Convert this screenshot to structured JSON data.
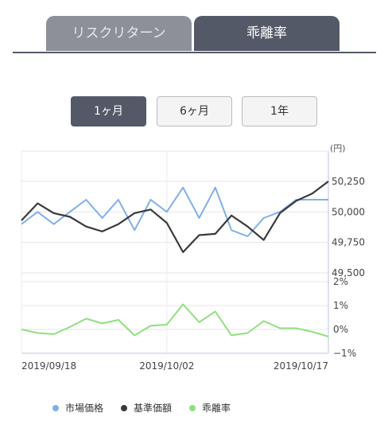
{
  "tabs": [
    {
      "label": "リスクリターン",
      "active": false
    },
    {
      "label": "乖離率",
      "active": true
    }
  ],
  "periods": [
    {
      "label": "1ヶ月",
      "selected": true
    },
    {
      "label": "6ヶ月",
      "selected": false
    },
    {
      "label": "1年",
      "selected": false
    }
  ],
  "colors": {
    "market": "#7fb0e6",
    "nav": "#3a3a3a",
    "deviation": "#8fe07e",
    "tab_active": "#535967",
    "tab_inactive": "#8d9098"
  },
  "chart_data": {
    "type": "line",
    "x": [
      "2019/09/18",
      "2019/09/19",
      "2019/09/20",
      "2019/09/24",
      "2019/09/25",
      "2019/09/26",
      "2019/09/27",
      "2019/09/30",
      "2019/10/01",
      "2019/10/02",
      "2019/10/03",
      "2019/10/04",
      "2019/10/07",
      "2019/10/08",
      "2019/10/09",
      "2019/10/10",
      "2019/10/11",
      "2019/10/15",
      "2019/10/16",
      "2019/10/17"
    ],
    "x_tick_labels": [
      "2019/09/18",
      "2019/10/02",
      "2019/10/17"
    ],
    "price_unit": "(円)",
    "price_ticks": [
      "50,250",
      "50,000",
      "49,750",
      "49,500"
    ],
    "price_ylim": [
      49500,
      50300
    ],
    "pct_ticks": [
      "2%",
      "1%",
      "0%",
      "−1%"
    ],
    "pct_ylim": [
      -1,
      2
    ],
    "series": [
      {
        "name": "市場価格",
        "axis": "price",
        "values": [
          49900,
          50000,
          49900,
          50000,
          50100,
          49950,
          50100,
          49850,
          50100,
          50000,
          50200,
          49950,
          50200,
          49850,
          49800,
          49950,
          50000,
          50100,
          50100,
          50100
        ]
      },
      {
        "name": "基準価額",
        "axis": "price",
        "values": [
          49930,
          50070,
          49990,
          49960,
          49880,
          49840,
          49900,
          49990,
          50020,
          49910,
          49670,
          49810,
          49820,
          49970,
          49880,
          49770,
          49990,
          50090,
          50150,
          50250
        ]
      },
      {
        "name": "乖離率",
        "axis": "pct",
        "values": [
          0.0,
          -0.15,
          -0.2,
          0.1,
          0.45,
          0.25,
          0.4,
          -0.25,
          0.15,
          0.2,
          1.05,
          0.3,
          0.75,
          -0.25,
          -0.15,
          0.35,
          0.05,
          0.05,
          -0.1,
          -0.3
        ]
      }
    ]
  }
}
